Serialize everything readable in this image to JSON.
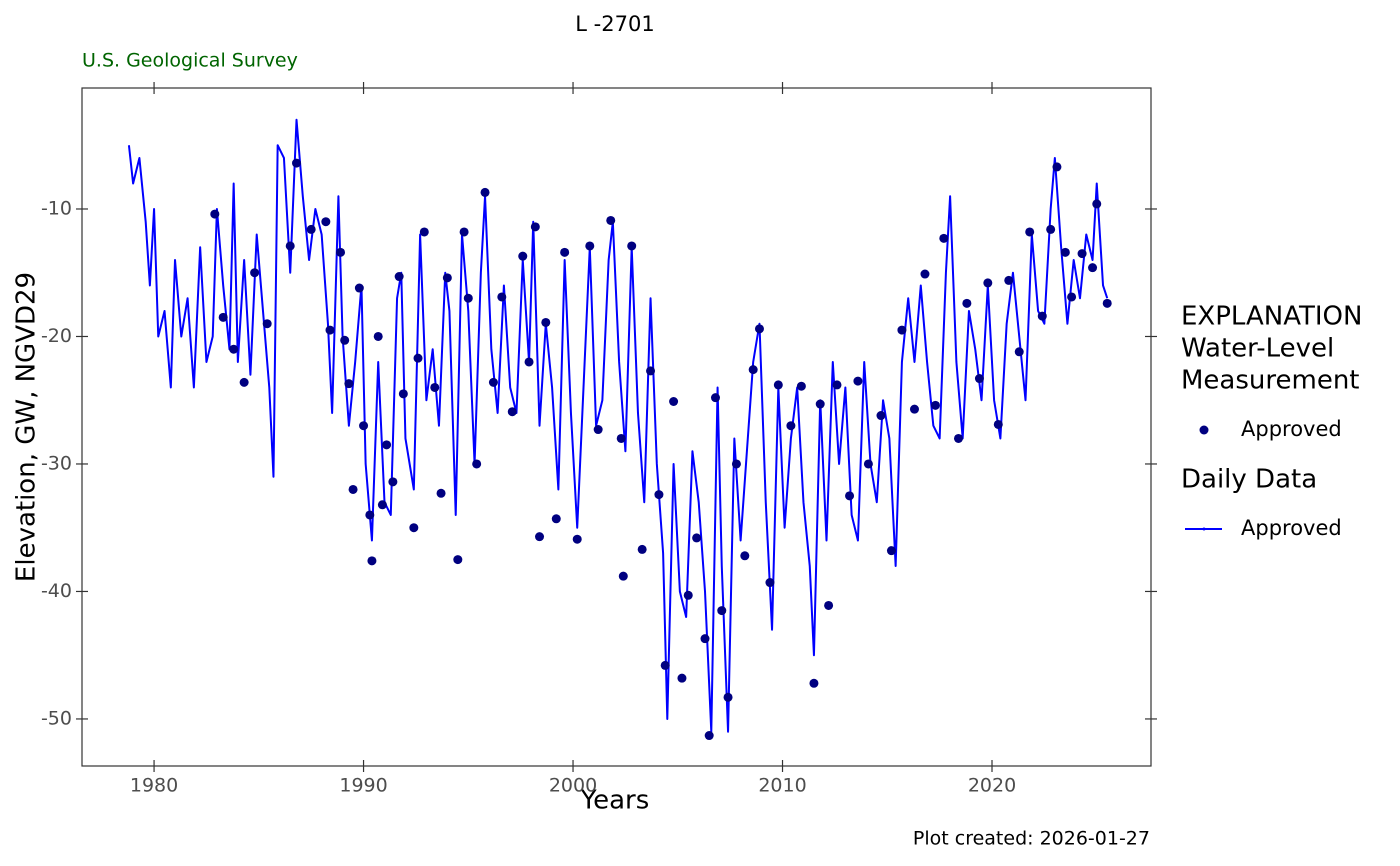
{
  "chart_data": {
    "type": "line",
    "title": "L  -2701",
    "subtitle": "U.S. Geological Survey",
    "x_label": "Years",
    "y_label": "Elevation, GW, NGVD29",
    "caption": "Plot created: 2026-01-27",
    "xlim": [
      1976.56,
      2027.59
    ],
    "ylim": [
      -53.69,
      -0.51
    ],
    "xticks": [
      1980,
      1990,
      2000,
      2010,
      2020
    ],
    "yticks": [
      -50,
      -40,
      -30,
      -20,
      -10
    ],
    "grid": false,
    "legend_position": "right",
    "series": [
      {
        "name": "Approved",
        "kind": "points",
        "legend_title": [
          "EXPLANATION",
          "Water-Level",
          "Measurement"
        ],
        "color": "#000080",
        "x": [
          1982.9,
          1983.3,
          1983.8,
          1984.3,
          1984.8,
          1985.4,
          1986.5,
          1986.8,
          1987.5,
          1988.2,
          1988.4,
          1988.9,
          1989.1,
          1989.3,
          1989.5,
          1989.8,
          1990.0,
          1990.3,
          1990.4,
          1990.7,
          1990.9,
          1991.1,
          1991.4,
          1991.7,
          1991.9,
          1992.4,
          1992.6,
          1992.9,
          1993.4,
          1993.7,
          1994.0,
          1994.5,
          1994.8,
          1995.0,
          1995.4,
          1995.8,
          1996.2,
          1996.6,
          1997.1,
          1997.6,
          1997.9,
          1998.2,
          1998.4,
          1998.7,
          1999.2,
          1999.6,
          2000.2,
          2000.8,
          2001.2,
          2001.8,
          2002.3,
          2002.4,
          2002.8,
          2003.3,
          2003.7,
          2004.1,
          2004.4,
          2004.8,
          2005.2,
          2005.5,
          2005.9,
          2006.3,
          2006.5,
          2006.8,
          2007.1,
          2007.4,
          2007.8,
          2008.2,
          2008.6,
          2008.9,
          2009.4,
          2009.8,
          2010.4,
          2010.9,
          2011.5,
          2011.8,
          2012.2,
          2012.6,
          2013.2,
          2013.6,
          2014.1,
          2014.7,
          2015.2,
          2015.7,
          2016.3,
          2016.8,
          2017.3,
          2017.7,
          2018.4,
          2018.8,
          2019.4,
          2019.8,
          2020.3,
          2020.8,
          2021.3,
          2021.8,
          2022.4,
          2022.8,
          2023.1,
          2023.5,
          2023.8,
          2024.3,
          2024.8,
          2025.0,
          2025.5
        ],
        "values": [
          -10.4,
          -18.5,
          -21,
          -23.6,
          -15,
          -19,
          -12.9,
          -6.4,
          -11.6,
          -11,
          -19.5,
          -13.4,
          -20.3,
          -23.7,
          -32,
          -16.2,
          -27,
          -34,
          -37.6,
          -20,
          -33.2,
          -28.5,
          -31.4,
          -15.3,
          -24.5,
          -35,
          -21.7,
          -11.8,
          -24,
          -32.3,
          -15.4,
          -37.5,
          -11.8,
          -17,
          -30,
          -8.7,
          -23.6,
          -16.9,
          -25.9,
          -13.7,
          -22,
          -11.4,
          -35.7,
          -18.9,
          -34.3,
          -13.4,
          -35.9,
          -12.9,
          -27.3,
          -10.9,
          -28,
          -38.8,
          -12.9,
          -36.7,
          -22.7,
          -32.4,
          -45.8,
          -25.1,
          -46.8,
          -40.3,
          -35.8,
          -43.7,
          -51.3,
          -24.8,
          -41.5,
          -48.3,
          -30,
          -37.2,
          -22.6,
          -19.4,
          -39.3,
          -23.8,
          -27,
          -23.9,
          -47.2,
          -25.3,
          -41.1,
          -23.8,
          -32.5,
          -23.5,
          -30,
          -26.2,
          -36.8,
          -19.5,
          -25.7,
          -15.1,
          -25.4,
          -12.3,
          -28,
          -17.4,
          -23.3,
          -15.8,
          -26.9,
          -15.6,
          -21.2,
          -11.8,
          -18.4,
          -11.6,
          -6.7,
          -13.4,
          -16.9,
          -13.5,
          -14.6,
          -9.6,
          -17.4
        ]
      },
      {
        "name": "Approved",
        "kind": "line",
        "legend_title": [
          "Daily Data"
        ],
        "color": "#0000ff",
        "x": [
          1978.8,
          1979.0,
          1979.3,
          1979.6,
          1979.8,
          1980.0,
          1980.2,
          1980.5,
          1980.8,
          1981.0,
          1981.3,
          1981.6,
          1981.9,
          1982.2,
          1982.5,
          1982.8,
          1983.0,
          1983.3,
          1983.6,
          1983.8,
          1984.0,
          1984.3,
          1984.6,
          1984.9,
          1985.2,
          1985.5,
          1985.7,
          1985.9,
          1986.2,
          1986.5,
          1986.8,
          1987.1,
          1987.4,
          1987.7,
          1988.0,
          1988.3,
          1988.5,
          1988.8,
          1989.0,
          1989.3,
          1989.6,
          1989.9,
          1990.1,
          1990.4,
          1990.7,
          1991.0,
          1991.3,
          1991.6,
          1991.8,
          1992.0,
          1992.4,
          1992.7,
          1993.0,
          1993.3,
          1993.6,
          1993.9,
          1994.1,
          1994.4,
          1994.7,
          1995.0,
          1995.3,
          1995.6,
          1995.8,
          1996.1,
          1996.4,
          1996.7,
          1997.0,
          1997.3,
          1997.6,
          1997.9,
          1998.1,
          1998.4,
          1998.7,
          1999.0,
          1999.3,
          1999.6,
          1999.9,
          2000.2,
          2000.5,
          2000.8,
          2001.1,
          2001.4,
          2001.7,
          2001.9,
          2002.2,
          2002.5,
          2002.8,
          2003.1,
          2003.4,
          2003.7,
          2004.0,
          2004.3,
          2004.5,
          2004.8,
          2005.1,
          2005.4,
          2005.7,
          2006.0,
          2006.3,
          2006.6,
          2006.9,
          2007.1,
          2007.4,
          2007.7,
          2008.0,
          2008.3,
          2008.6,
          2008.9,
          2009.2,
          2009.5,
          2009.8,
          2010.1,
          2010.4,
          2010.7,
          2011.0,
          2011.3,
          2011.5,
          2011.8,
          2012.1,
          2012.4,
          2012.7,
          2013.0,
          2013.3,
          2013.6,
          2013.9,
          2014.2,
          2014.5,
          2014.8,
          2015.1,
          2015.4,
          2015.7,
          2016.0,
          2016.3,
          2016.6,
          2016.9,
          2017.2,
          2017.5,
          2017.8,
          2018.0,
          2018.3,
          2018.6,
          2018.9,
          2019.2,
          2019.5,
          2019.8,
          2020.1,
          2020.4,
          2020.7,
          2021.0,
          2021.3,
          2021.6,
          2021.9,
          2022.2,
          2022.5,
          2022.8,
          2023.0,
          2023.3,
          2023.6,
          2023.9,
          2024.2,
          2024.5,
          2024.8,
          2025.0,
          2025.3,
          2025.5
        ],
        "values": [
          -5,
          -8,
          -6,
          -11,
          -16,
          -10,
          -20,
          -18,
          -24,
          -14,
          -20,
          -17,
          -24,
          -13,
          -22,
          -20,
          -10,
          -16,
          -21,
          -8,
          -22,
          -14,
          -23,
          -12,
          -18,
          -24,
          -31,
          -5,
          -6,
          -15,
          -3,
          -9,
          -14,
          -10,
          -12,
          -19,
          -26,
          -9,
          -20,
          -27,
          -22,
          -16,
          -30,
          -36,
          -22,
          -33,
          -34,
          -17,
          -15,
          -28,
          -32,
          -12,
          -25,
          -21,
          -27,
          -15,
          -18,
          -34,
          -12,
          -18,
          -30,
          -15,
          -9,
          -21,
          -26,
          -16,
          -24,
          -26,
          -14,
          -22,
          -11,
          -27,
          -19,
          -24,
          -32,
          -14,
          -26,
          -35,
          -24,
          -13,
          -27,
          -25,
          -14,
          -11,
          -22,
          -29,
          -13,
          -26,
          -33,
          -17,
          -30,
          -37,
          -50,
          -30,
          -40,
          -42,
          -29,
          -33,
          -40,
          -51,
          -24,
          -38,
          -51,
          -28,
          -36,
          -29,
          -22,
          -19,
          -33,
          -43,
          -24,
          -35,
          -28,
          -24,
          -33,
          -38,
          -45,
          -25,
          -36,
          -22,
          -30,
          -24,
          -34,
          -36,
          -22,
          -30,
          -33,
          -25,
          -28,
          -38,
          -22,
          -17,
          -22,
          -16,
          -22,
          -27,
          -28,
          -15,
          -9,
          -22,
          -28,
          -18,
          -21,
          -25,
          -16,
          -25,
          -28,
          -19,
          -15,
          -20,
          -25,
          -12,
          -18,
          -19,
          -10,
          -6,
          -13,
          -19,
          -14,
          -17,
          -12,
          -14,
          -8,
          -16,
          -17
        ]
      }
    ]
  }
}
